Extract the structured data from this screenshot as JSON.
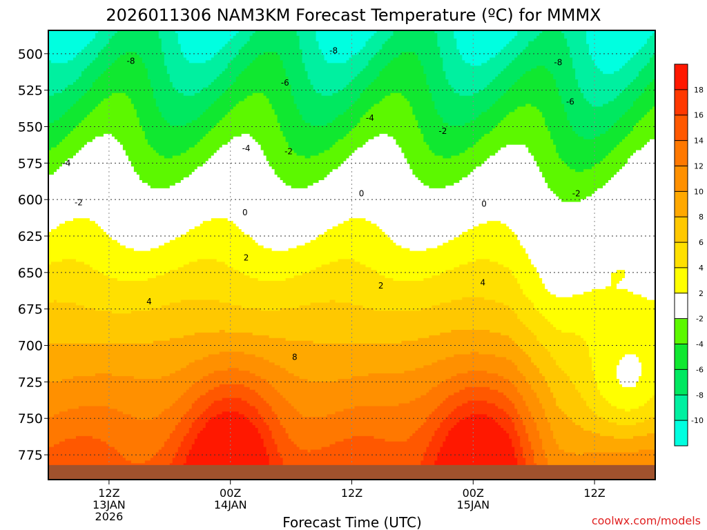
{
  "chart_data": {
    "type": "heatmap",
    "title": "2026011306 NAM3KM Forecast Temperature (ºC) for MMMX",
    "xlabel": "Forecast Time (UTC)",
    "ylabel": "",
    "credit": "coolwx.com/models",
    "x_range_hours": [
      -5,
      45
    ],
    "y_range_hpa": [
      484,
      792
    ],
    "x_ticks": [
      {
        "hour": 0,
        "line1": "12Z",
        "line2": "13JAN",
        "line3": "2026"
      },
      {
        "hour": 10,
        "line1": "00Z",
        "line2": "14JAN",
        "line3": ""
      },
      {
        "hour": 20,
        "line1": "12Z",
        "line2": "",
        "line3": ""
      },
      {
        "hour": 30,
        "line1": "00Z",
        "line2": "15JAN",
        "line3": ""
      },
      {
        "hour": 40,
        "line1": "12Z",
        "line2": "",
        "line3": ""
      }
    ],
    "y_ticks": [
      500,
      525,
      550,
      575,
      600,
      625,
      650,
      675,
      700,
      725,
      750,
      775
    ],
    "terrain_pressure_hpa": 782,
    "colorbar": {
      "band_edges": [
        -12,
        -10,
        -8,
        -6,
        -4,
        -2,
        2,
        4,
        6,
        8,
        10,
        12,
        14,
        16,
        18,
        20
      ],
      "colors": [
        "#00ffe0",
        "#00f0a0",
        "#00e860",
        "#10e830",
        "#5cf800",
        "#ffffff",
        "#ffff00",
        "#ffe000",
        "#ffc800",
        "#ffa800",
        "#ff9000",
        "#ff7800",
        "#ff5800",
        "#ff3800",
        "#ff1800"
      ],
      "labels": [
        "-10",
        "-8",
        "-6",
        "-4",
        "-2",
        "2",
        "4",
        "6",
        "8",
        "10",
        "12",
        "14",
        "16",
        "18"
      ]
    },
    "isotherm_labels": [
      {
        "text": "-8",
        "hour": 1.8,
        "p": 505
      },
      {
        "text": "-8",
        "hour": 18.5,
        "p": 498
      },
      {
        "text": "-8",
        "hour": 37.0,
        "p": 506
      },
      {
        "text": "-6",
        "hour": 14.5,
        "p": 520
      },
      {
        "text": "-6",
        "hour": 38.0,
        "p": 533
      },
      {
        "text": "-4",
        "hour": 21.5,
        "p": 544
      },
      {
        "text": "-4",
        "hour": 11.3,
        "p": 565
      },
      {
        "text": "-4",
        "hour": -3.5,
        "p": 575
      },
      {
        "text": "-2",
        "hour": 27.5,
        "p": 553
      },
      {
        "text": "-2",
        "hour": 14.8,
        "p": 567
      },
      {
        "text": "-2",
        "hour": 38.5,
        "p": 596
      },
      {
        "text": "-2",
        "hour": -2.5,
        "p": 602
      },
      {
        "text": "0",
        "hour": 20.8,
        "p": 596
      },
      {
        "text": "0",
        "hour": 11.2,
        "p": 609
      },
      {
        "text": "0",
        "hour": 30.9,
        "p": 603
      },
      {
        "text": "2",
        "hour": 11.3,
        "p": 640
      },
      {
        "text": "2",
        "hour": 22.4,
        "p": 659
      },
      {
        "text": "4",
        "hour": 30.8,
        "p": 657
      },
      {
        "text": "4",
        "hour": 3.3,
        "p": 670
      },
      {
        "text": "8",
        "hour": 15.3,
        "p": 708
      }
    ]
  }
}
